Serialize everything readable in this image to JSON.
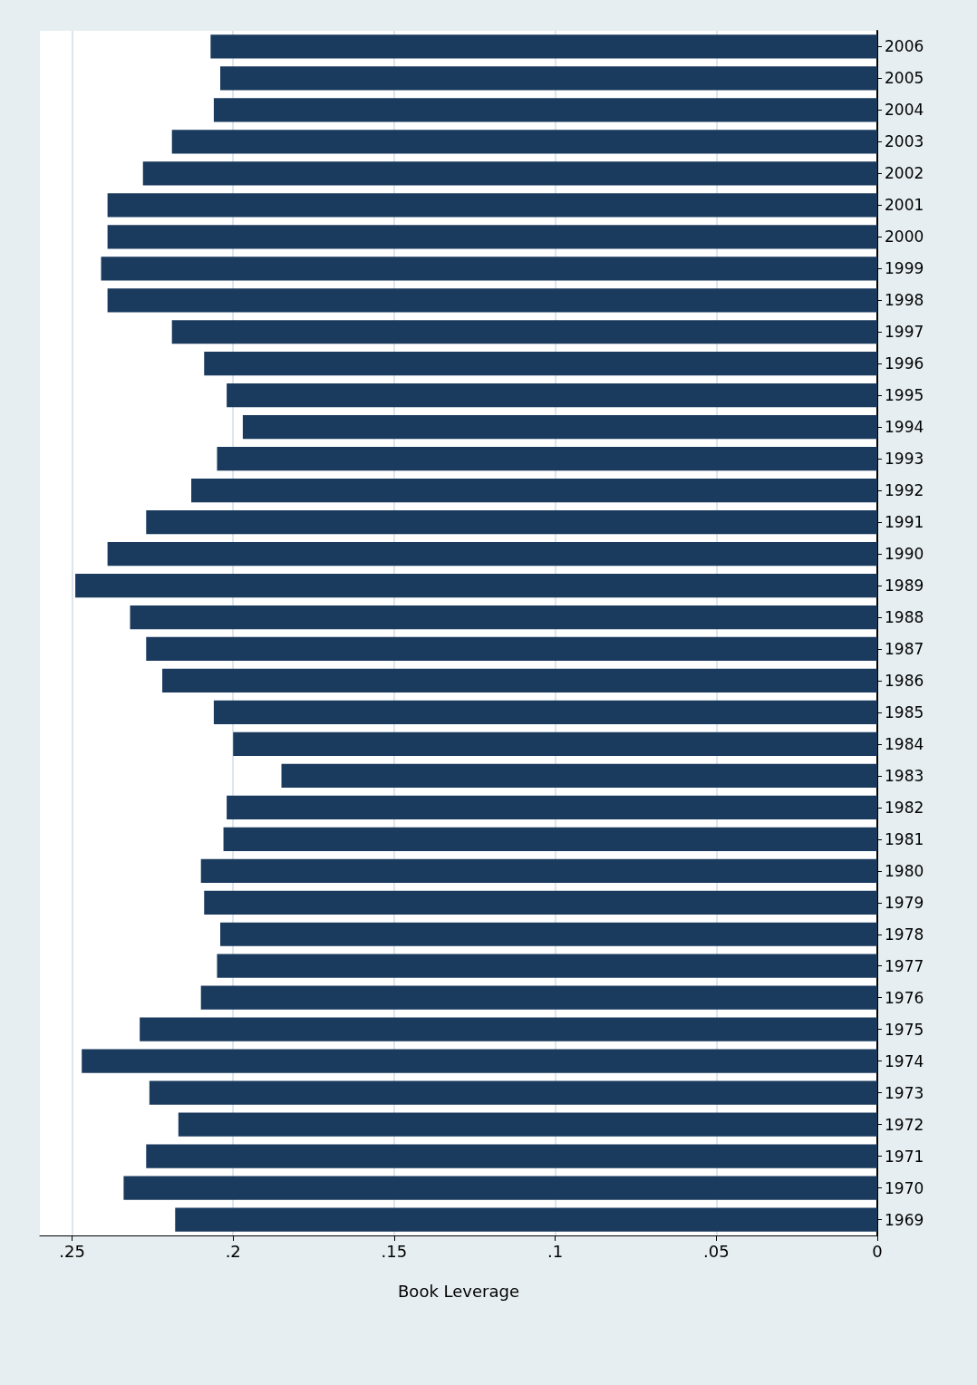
{
  "chart_data": {
    "type": "bar",
    "orientation": "horizontal",
    "xlabel": "Book Leverage",
    "categories": [
      "2006",
      "2005",
      "2004",
      "2003",
      "2002",
      "2001",
      "2000",
      "1999",
      "1998",
      "1997",
      "1996",
      "1995",
      "1994",
      "1993",
      "1992",
      "1991",
      "1990",
      "1989",
      "1988",
      "1987",
      "1986",
      "1985",
      "1984",
      "1983",
      "1982",
      "1981",
      "1980",
      "1979",
      "1978",
      "1977",
      "1976",
      "1975",
      "1974",
      "1973",
      "1972",
      "1971",
      "1970",
      "1969"
    ],
    "values": [
      0.207,
      0.204,
      0.206,
      0.219,
      0.228,
      0.239,
      0.239,
      0.241,
      0.239,
      0.219,
      0.209,
      0.202,
      0.197,
      0.205,
      0.213,
      0.227,
      0.239,
      0.249,
      0.232,
      0.227,
      0.222,
      0.206,
      0.2,
      0.185,
      0.202,
      0.203,
      0.21,
      0.209,
      0.204,
      0.205,
      0.21,
      0.229,
      0.247,
      0.226,
      0.217,
      0.227,
      0.234,
      0.218
    ],
    "color": "#1a3a5e",
    "xlim": [
      0.26,
      0
    ],
    "xticks": [
      {
        "value": 0.25,
        "label": ".25"
      },
      {
        "value": 0.2,
        "label": ".2"
      },
      {
        "value": 0.15,
        "label": ".15"
      },
      {
        "value": 0.1,
        "label": ".1"
      },
      {
        "value": 0.05,
        "label": ".05"
      },
      0
    ],
    "grid": "x"
  }
}
